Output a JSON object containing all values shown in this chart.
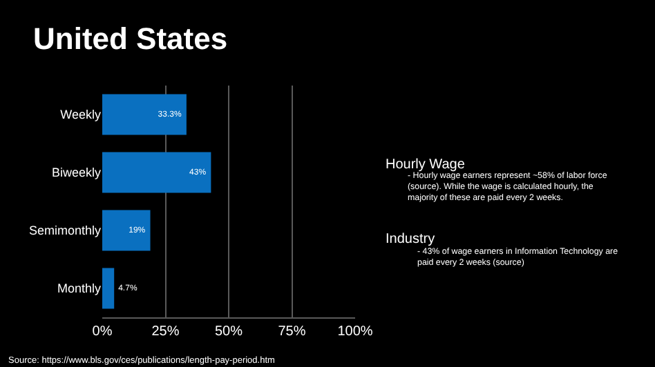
{
  "chart_data": {
    "type": "bar",
    "orientation": "horizontal",
    "title": "United States",
    "categories": [
      "Weekly",
      "Biweekly",
      "Semimonthly",
      "Monthly"
    ],
    "values": [
      33.3,
      43,
      19,
      4.7
    ],
    "value_labels": [
      "33.3%",
      "43%",
      "19%",
      "4.7%"
    ],
    "color": "#0a70c0",
    "xlim": [
      0,
      100
    ],
    "xticks": [
      {
        "value": 0,
        "label": "0%"
      },
      {
        "value": 25,
        "label": "25%"
      },
      {
        "value": 50,
        "label": "50%"
      },
      {
        "value": 75,
        "label": "75%"
      },
      {
        "value": 100,
        "label": "100%"
      }
    ],
    "grid": "x",
    "legend": false,
    "annotations": [
      "Hourly Wage",
      "- Hourly wage earners represent ~58% of labor force (source). While the wage is calculated hourly, the majority of these are paid every 2 weeks.",
      "Industry",
      "- 43% of wage earners in Information Technology are paid every 2 weeks (source)",
      "Source: https://www.bls.gov/ces/publications/length-pay-period.htm"
    ]
  }
}
